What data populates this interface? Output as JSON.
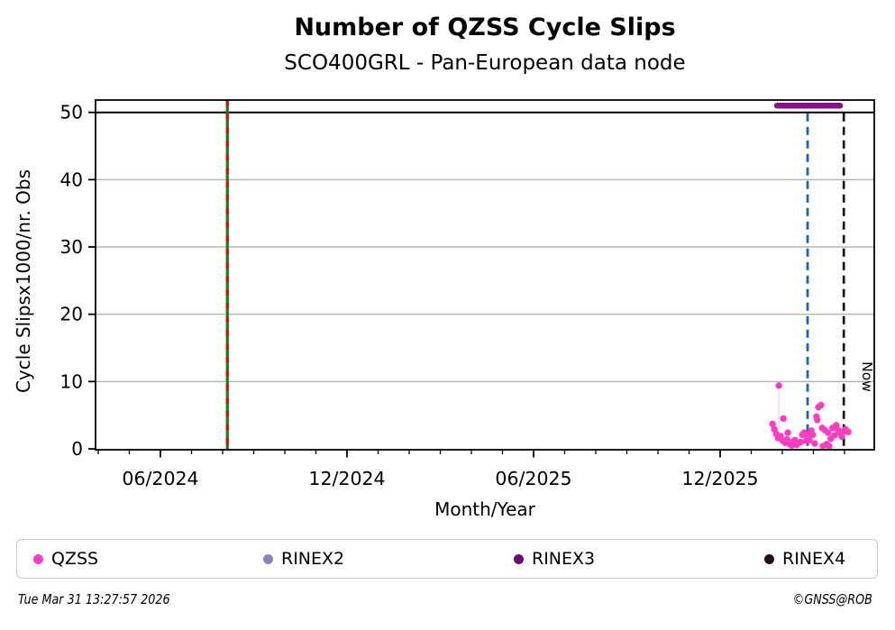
{
  "chart_data": {
    "type": "scatter",
    "title": "Number of QZSS Cycle Slips",
    "subtitle": "SCO400GRL - Pan-European data node",
    "xlabel": "Month/Year",
    "ylabel": "Cycle Slipsx1000/nr. Obs",
    "ylim": [
      0,
      51.8
    ],
    "xlim_decimal_years": [
      2024.243,
      2026.33
    ],
    "grid": "horizontal",
    "y_ticks": [
      0,
      10,
      20,
      30,
      40,
      50
    ],
    "x_major_ticks": [
      {
        "label": "06/2024",
        "year": 2024.41667
      },
      {
        "label": "12/2024",
        "year": 2024.91667
      },
      {
        "label": "06/2025",
        "year": 2025.41667
      },
      {
        "label": "12/2025",
        "year": 2025.91667
      }
    ],
    "x_minor_tick_interval_months": 1,
    "threshold_line": {
      "y": 50,
      "color": "#000000"
    },
    "series": [
      {
        "name": "QZSS",
        "type": "scatter",
        "color": "#fb3dc0",
        "points": [
          [
            2026.074,
            9.4
          ],
          [
            2026.057,
            3.7
          ],
          [
            2026.062,
            2.9
          ],
          [
            2026.067,
            2.2
          ],
          [
            2026.072,
            1.6
          ],
          [
            2026.079,
            1.9
          ],
          [
            2026.086,
            4.5
          ],
          [
            2026.084,
            1.2
          ],
          [
            2026.091,
            0.9
          ],
          [
            2026.096,
            1.4
          ],
          [
            2026.098,
            2.4
          ],
          [
            2026.103,
            0.7
          ],
          [
            2026.108,
            0.5
          ],
          [
            2026.113,
            1.1
          ],
          [
            2026.117,
            1.3
          ],
          [
            2026.122,
            0.6
          ],
          [
            2026.127,
            0.9
          ],
          [
            2026.132,
            1.0
          ],
          [
            2026.137,
            2.1
          ],
          [
            2026.142,
            2.4
          ],
          [
            2026.146,
            1.2
          ],
          [
            2026.151,
            2.0
          ],
          [
            2026.156,
            1.3
          ],
          [
            2026.161,
            2.7
          ],
          [
            2026.165,
            2.1
          ],
          [
            2026.17,
            0.8
          ],
          [
            2026.175,
            4.8
          ],
          [
            2026.177,
            4.3
          ],
          [
            2026.18,
            6.2
          ],
          [
            2026.187,
            6.5
          ],
          [
            2026.19,
            3.1
          ],
          [
            2026.192,
            0.4
          ],
          [
            2026.197,
            2.8
          ],
          [
            2026.202,
            0.7
          ],
          [
            2026.206,
            2.4
          ],
          [
            2026.209,
            0.4
          ],
          [
            2026.213,
            1.5
          ],
          [
            2026.218,
            3.1
          ],
          [
            2026.223,
            2.0
          ],
          [
            2026.228,
            3.5
          ],
          [
            2026.233,
            2.8
          ],
          [
            2026.238,
            2.4
          ],
          [
            2026.243,
            1.8
          ],
          [
            2026.248,
            2.6
          ],
          [
            2026.253,
            2.9
          ],
          [
            2026.26,
            2.5
          ]
        ],
        "drop_line": {
          "x": 2026.074,
          "from": 9.4,
          "to": 2.0,
          "color": "#ffc9ea"
        }
      },
      {
        "name": "RINEX3",
        "type": "line",
        "color": "#8b0f8b",
        "y": 51.0,
        "x_start": 2026.069,
        "x_end": 2026.238
      }
    ],
    "annotations": {
      "green_red_vline": {
        "x": 2024.596,
        "solid_color": "#128012",
        "dash_color": "#d40f0f"
      },
      "blue_dashed_vline": {
        "x": 2026.151,
        "color": "#1f64ae"
      },
      "now_vline": {
        "x": 2026.248,
        "color": "#000000",
        "label": "Now"
      }
    },
    "legend_position": "bottom"
  },
  "legend": {
    "items": [
      {
        "label": "QZSS",
        "color": "#fb3dc0"
      },
      {
        "label": "RINEX2",
        "color": "#8b83bd"
      },
      {
        "label": "RINEX3",
        "color": "#6e0b6e"
      },
      {
        "label": "RINEX4",
        "color": "#250a25"
      }
    ]
  },
  "footer": {
    "timestamp": "Tue Mar 31 13:27:57 2026",
    "credit": "©GNSS@ROB"
  }
}
